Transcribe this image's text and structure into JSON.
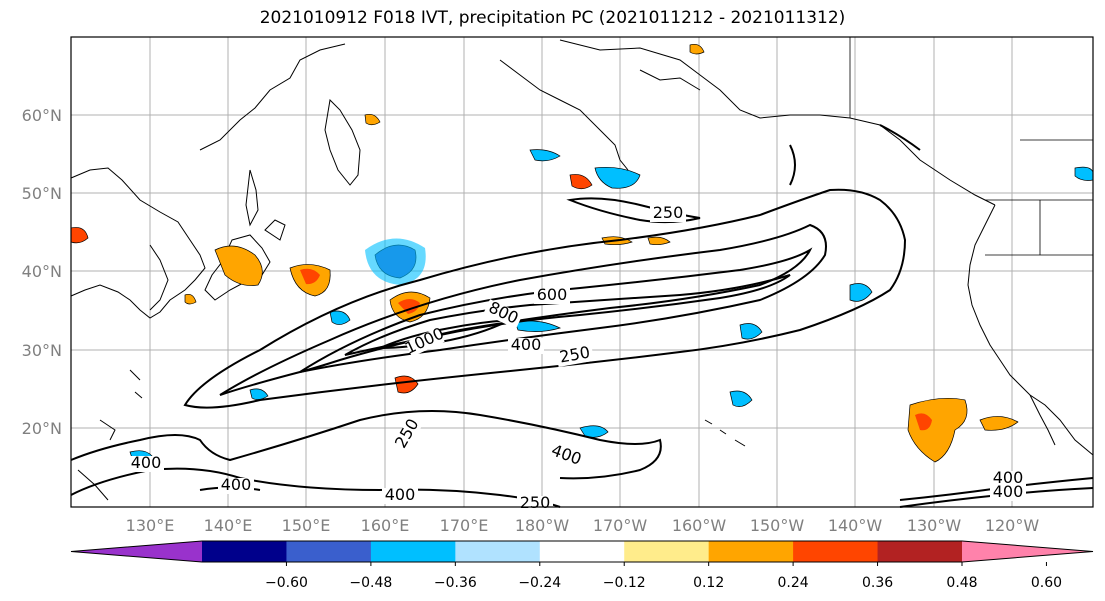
{
  "title": "2021010912 F018 IVT, precipitation PC (2021011212 - 2021011312)",
  "lat_labels": [
    "60°N",
    "50°N",
    "40°N",
    "30°N",
    "20°N"
  ],
  "lon_labels": [
    "130°E",
    "140°E",
    "150°E",
    "160°E",
    "170°E",
    "180°W",
    "170°W",
    "160°W",
    "150°W",
    "140°W",
    "130°W",
    "120°W"
  ],
  "contour_labels": [
    "250",
    "600",
    "800",
    "1000",
    "400",
    "250",
    "250",
    "400",
    "400",
    "400",
    "400",
    "250",
    "400",
    "400"
  ],
  "colorbar": {
    "colors": [
      "#9932cc",
      "#00008b",
      "#3a5fcd",
      "#00bfff",
      "#b0e2ff",
      "#ffffff",
      "#ffec8b",
      "#ffa500",
      "#ff4500",
      "#b22222",
      "#ff82ab"
    ],
    "tick_labels": [
      "−0.60",
      "−0.48",
      "−0.36",
      "−0.24",
      "−0.12",
      "0.12",
      "0.24",
      "0.36",
      "0.48",
      "0.60"
    ]
  }
}
